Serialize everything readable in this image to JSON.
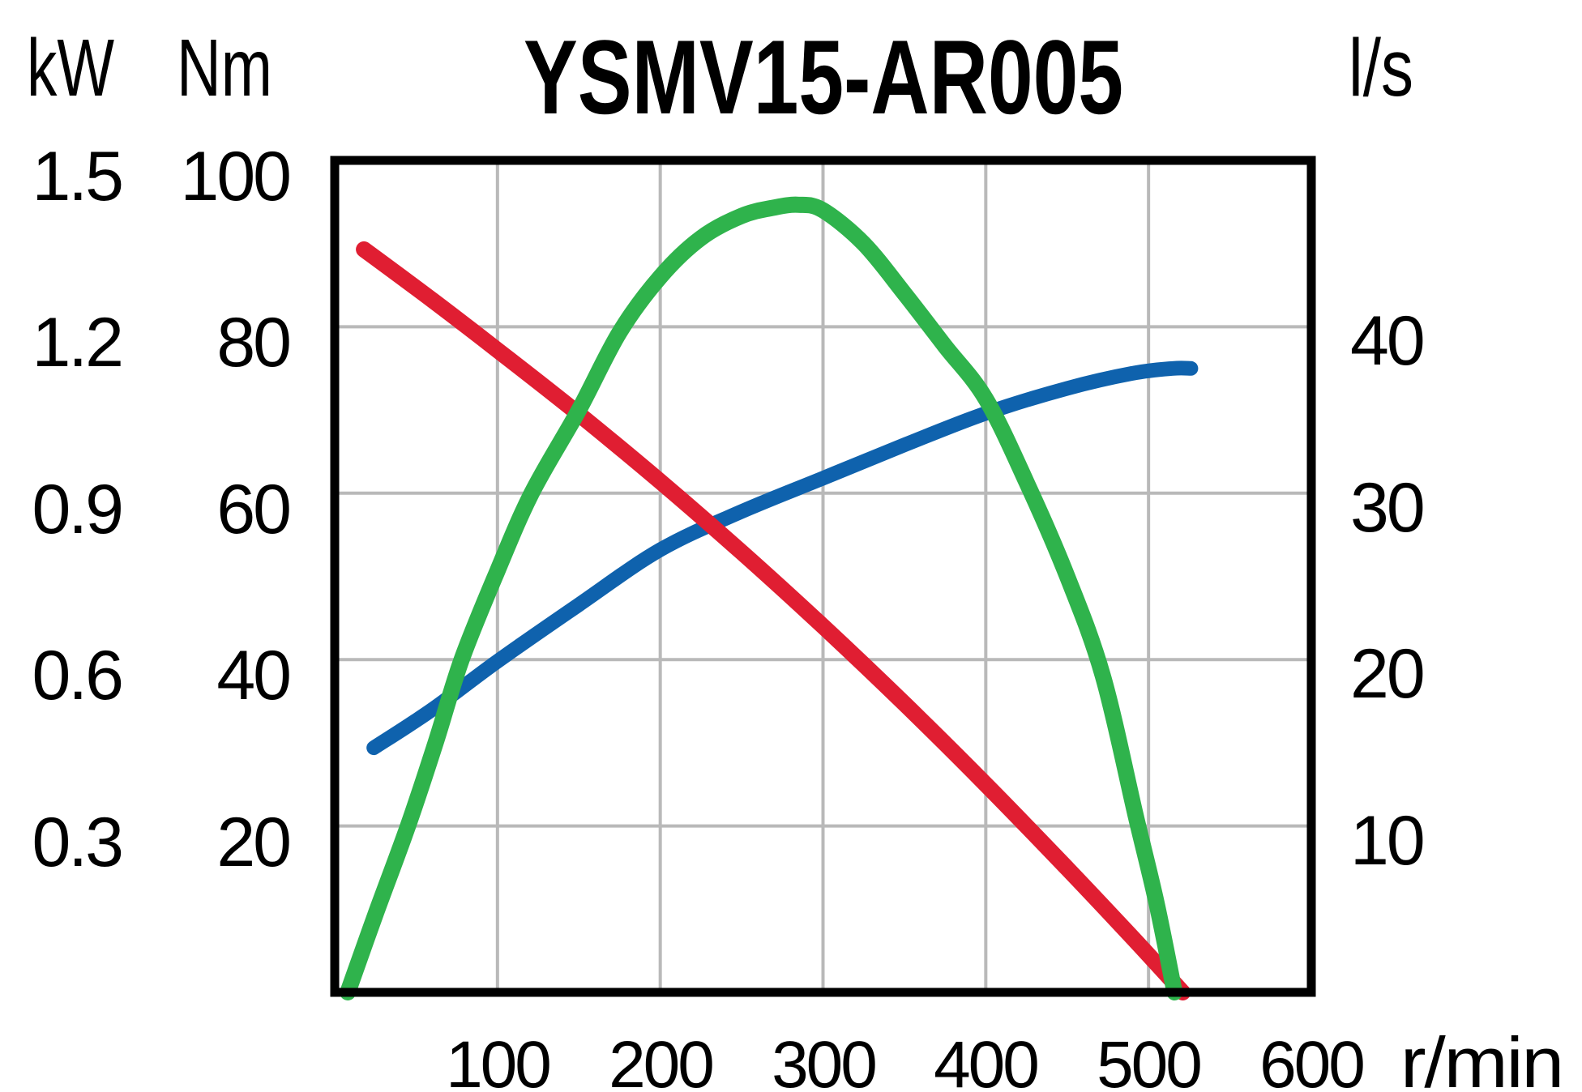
{
  "colors": {
    "power": "#2fb34c",
    "torque": "#e01e32",
    "flow": "#0f62ad",
    "grid": "#b9b9b9",
    "frame": "#000000",
    "title": "#000000"
  },
  "chart_data": {
    "type": "line",
    "title": "YSMV15-AR005",
    "grid": true,
    "legend": "none",
    "x_axis": {
      "label": "r/min",
      "min": 0,
      "max": 600,
      "ticks": [
        100,
        200,
        300,
        400,
        500,
        600
      ],
      "gridlines": [
        100,
        200,
        300,
        400,
        500
      ]
    },
    "y_axes": {
      "power": {
        "unit": "kW",
        "side": "left-outer",
        "color": "#2fb34c",
        "min": 0,
        "max": 1.5,
        "ticks": [
          1.5,
          1.2,
          0.9,
          0.6,
          0.3
        ]
      },
      "torque": {
        "unit": "Nm",
        "side": "left-inner",
        "color": "#e01e32",
        "min": 0,
        "max": 100,
        "ticks": [
          100,
          80,
          60,
          40,
          20
        ]
      },
      "flow": {
        "unit": "l/s",
        "side": "right",
        "color": "#0f62ad",
        "min": 0,
        "max": 50,
        "ticks": [
          40,
          30,
          20,
          10
        ]
      }
    },
    "series": [
      {
        "name": "flow",
        "axis": "flow",
        "unit": "l/s",
        "color": "#0f62ad",
        "points": [
          [
            24,
            14.7
          ],
          [
            60,
            17.0
          ],
          [
            100,
            19.9
          ],
          [
            150,
            23.3
          ],
          [
            200,
            26.6
          ],
          [
            250,
            28.9
          ],
          [
            300,
            30.9
          ],
          [
            350,
            32.9
          ],
          [
            400,
            34.8
          ],
          [
            450,
            36.3
          ],
          [
            490,
            37.2
          ],
          [
            515,
            37.5
          ],
          [
            526,
            37.5
          ]
        ]
      },
      {
        "name": "torque",
        "axis": "torque",
        "unit": "Nm",
        "color": "#e01e32",
        "points": [
          [
            18,
            89.3
          ],
          [
            60,
            83.2
          ],
          [
            100,
            77.2
          ],
          [
            150,
            69.5
          ],
          [
            200,
            61.4
          ],
          [
            250,
            52.9
          ],
          [
            300,
            44.0
          ],
          [
            350,
            34.7
          ],
          [
            400,
            25.0
          ],
          [
            450,
            14.9
          ],
          [
            490,
            6.6
          ],
          [
            521,
            0
          ]
        ]
      },
      {
        "name": "power",
        "axis": "power",
        "unit": "kW",
        "color": "#2fb34c",
        "points": [
          [
            8,
            0
          ],
          [
            25,
            0.14
          ],
          [
            45,
            0.3
          ],
          [
            62,
            0.45
          ],
          [
            78,
            0.6
          ],
          [
            100,
            0.76
          ],
          [
            121,
            0.9
          ],
          [
            150,
            1.05
          ],
          [
            175,
            1.19
          ],
          [
            200,
            1.29
          ],
          [
            225,
            1.36
          ],
          [
            250,
            1.4
          ],
          [
            270,
            1.415
          ],
          [
            285,
            1.42
          ],
          [
            300,
            1.41
          ],
          [
            325,
            1.35
          ],
          [
            350,
            1.26
          ],
          [
            375,
            1.165
          ],
          [
            400,
            1.07
          ],
          [
            425,
            0.92
          ],
          [
            450,
            0.75
          ],
          [
            472,
            0.57
          ],
          [
            492,
            0.32
          ],
          [
            505,
            0.16
          ],
          [
            516,
            0
          ]
        ]
      }
    ]
  }
}
